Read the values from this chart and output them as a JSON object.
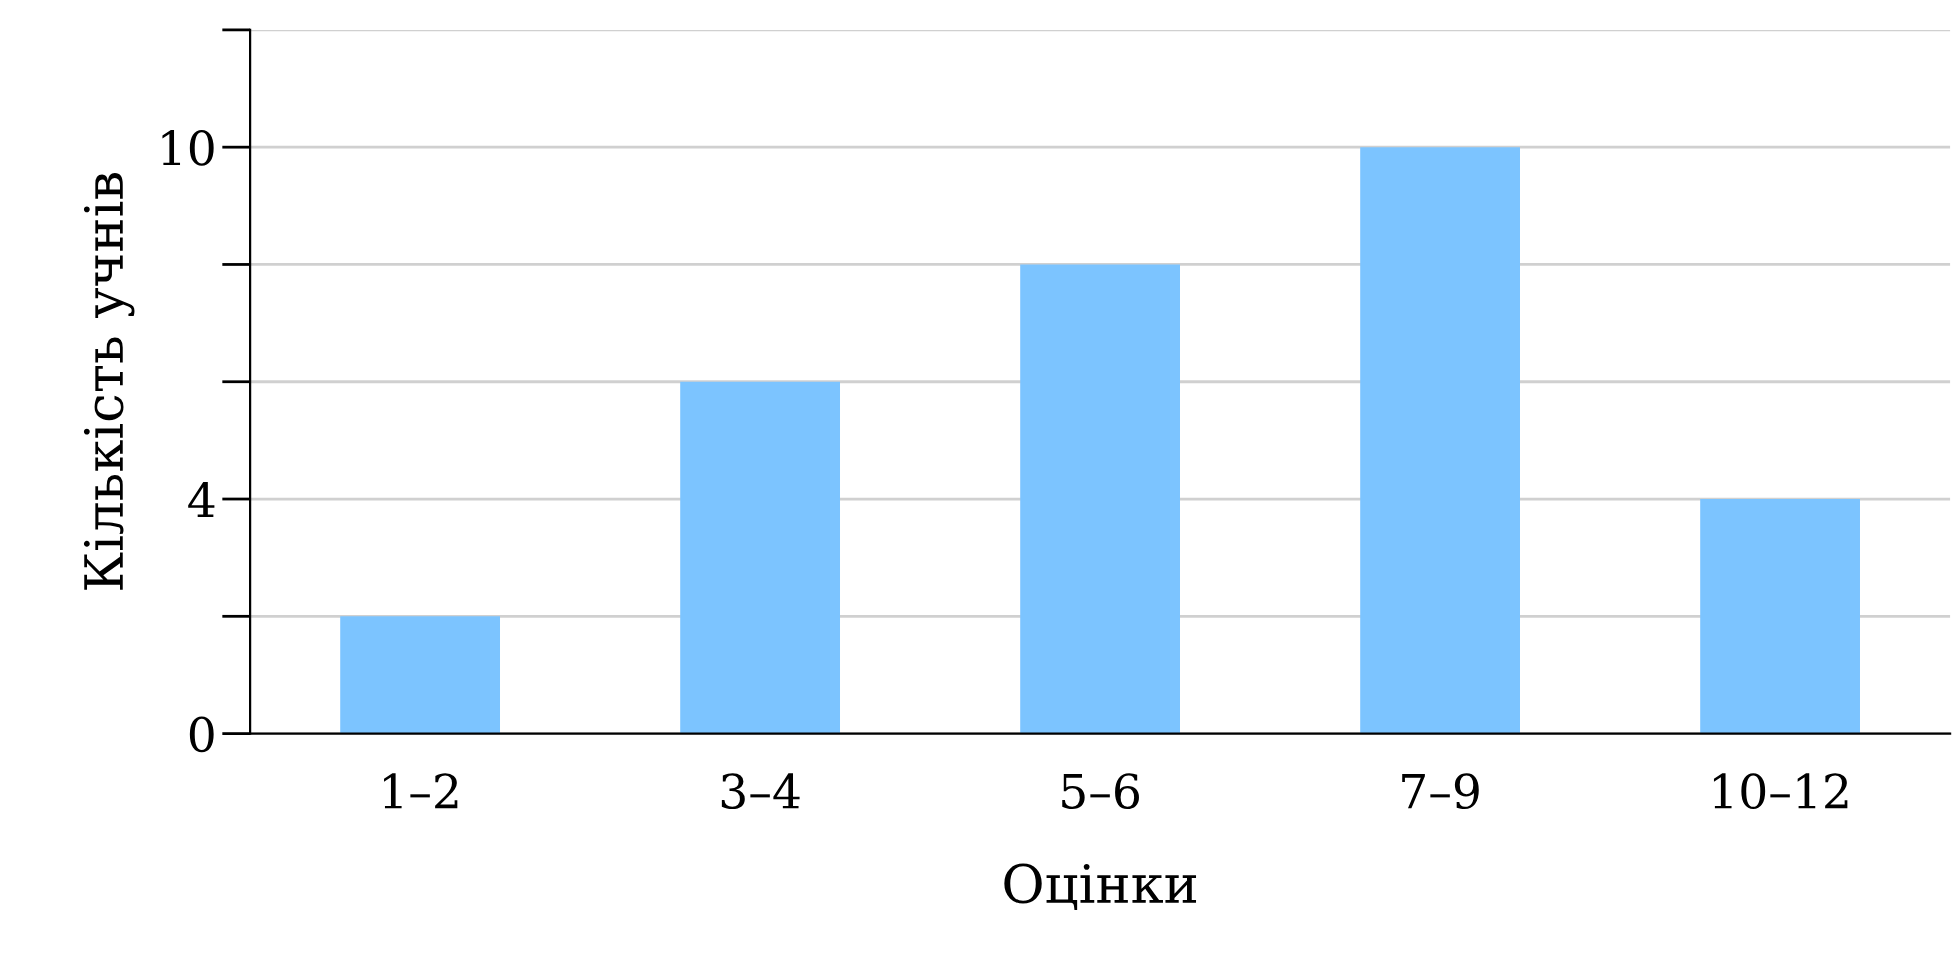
{
  "chart_data": {
    "type": "bar",
    "xlabel": "Оцінки",
    "ylabel": "Кількість учнів",
    "categories": [
      "1–2",
      "3–4",
      "5–6",
      "7–9",
      "10–12"
    ],
    "values": [
      2,
      6,
      8,
      10,
      4
    ],
    "color": "#7cc4ff",
    "ylim": [
      0,
      12
    ],
    "yticks": [
      0,
      {
        "value": 2,
        "label": null
      },
      4,
      {
        "value": 6,
        "label": null
      },
      {
        "value": 8,
        "label": null
      },
      10,
      {
        "value": 12,
        "label": null
      }
    ],
    "grid": "y"
  }
}
